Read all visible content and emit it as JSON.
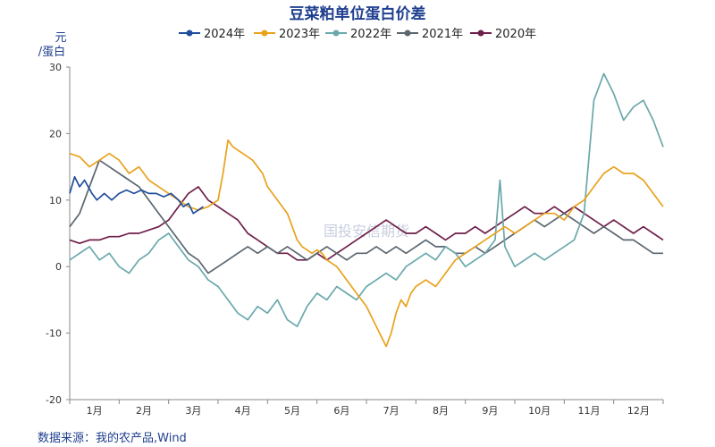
{
  "chart_data": {
    "type": "line",
    "title": "豆菜粕单位蛋白价差",
    "ylabel": "元/蛋白",
    "ylabel_line1": "元",
    "ylabel_line2": "/蛋白",
    "ylim": [
      -20,
      30
    ],
    "yticks": [
      30,
      20,
      10,
      0,
      -10,
      -20
    ],
    "xlim": [
      0,
      12
    ],
    "month_labels": [
      "1月",
      "2月",
      "3月",
      "4月",
      "5月",
      "6月",
      "7月",
      "8月",
      "9月",
      "10月",
      "11月",
      "12月"
    ],
    "legend_position": "top",
    "grid": false,
    "series": [
      {
        "name": "2024年",
        "color": "#1f4e9c",
        "x": [
          0,
          0.1,
          0.2,
          0.3,
          0.45,
          0.55,
          0.7,
          0.85,
          1.0,
          1.15,
          1.3,
          1.45,
          1.6,
          1.75,
          1.9,
          2.05,
          2.2,
          2.3,
          2.4,
          2.5,
          2.6,
          2.7
        ],
        "values": [
          11,
          13.5,
          12,
          13,
          11,
          10,
          11,
          10,
          11,
          11.5,
          11,
          11.5,
          11,
          11,
          10.5,
          11,
          10,
          9,
          9.5,
          8,
          8.5,
          9
        ]
      },
      {
        "name": "2023年",
        "color": "#e8a21c",
        "x": [
          0,
          0.2,
          0.4,
          0.6,
          0.8,
          1.0,
          1.2,
          1.4,
          1.6,
          1.8,
          2.0,
          2.2,
          2.4,
          2.6,
          2.8,
          3.0,
          3.1,
          3.2,
          3.3,
          3.5,
          3.7,
          3.9,
          4.0,
          4.2,
          4.4,
          4.5,
          4.6,
          4.7,
          4.8,
          4.9,
          5.0,
          5.1,
          5.2,
          5.4,
          5.6,
          5.8,
          6.0,
          6.2,
          6.4,
          6.5,
          6.6,
          6.7,
          6.8,
          6.9,
          7.0,
          7.2,
          7.4,
          7.6,
          7.8,
          8.0,
          8.2,
          8.4,
          8.6,
          8.8,
          9.0,
          9.2,
          9.4,
          9.6,
          9.8,
          10.0,
          10.2,
          10.4,
          10.6,
          10.8,
          11.0,
          11.2,
          11.4,
          11.6,
          11.8,
          12.0
        ],
        "values": [
          17,
          16.5,
          15,
          16,
          17,
          16,
          14,
          15,
          13,
          12,
          11,
          10,
          9,
          8.5,
          9,
          10,
          14,
          19,
          18,
          17,
          16,
          14,
          12,
          10,
          8,
          6,
          4,
          3,
          2.5,
          2,
          2.5,
          2,
          1,
          0,
          -2,
          -4,
          -6,
          -9,
          -12,
          -10,
          -7,
          -5,
          -6,
          -4,
          -3,
          -2,
          -3,
          -1,
          1,
          2,
          3,
          4,
          5,
          6,
          5,
          6,
          7,
          8,
          8,
          7,
          9,
          10,
          12,
          14,
          15,
          14,
          14,
          13,
          11,
          9
        ]
      },
      {
        "name": "2022年",
        "color": "#6aa8ab",
        "x": [
          0,
          0.2,
          0.4,
          0.6,
          0.8,
          1.0,
          1.2,
          1.4,
          1.6,
          1.8,
          2.0,
          2.2,
          2.4,
          2.6,
          2.8,
          3.0,
          3.2,
          3.4,
          3.6,
          3.8,
          4.0,
          4.2,
          4.4,
          4.6,
          4.8,
          5.0,
          5.2,
          5.4,
          5.6,
          5.8,
          6.0,
          6.2,
          6.4,
          6.6,
          6.8,
          7.0,
          7.2,
          7.4,
          7.6,
          7.8,
          8.0,
          8.2,
          8.4,
          8.6,
          8.7,
          8.8,
          9.0,
          9.2,
          9.4,
          9.6,
          9.8,
          10.0,
          10.2,
          10.4,
          10.6,
          10.8,
          11.0,
          11.2,
          11.4,
          11.6,
          11.8,
          12.0
        ],
        "values": [
          1,
          2,
          3,
          1,
          2,
          0,
          -1,
          1,
          2,
          4,
          5,
          3,
          1,
          0,
          -2,
          -3,
          -5,
          -7,
          -8,
          -6,
          -7,
          -5,
          -8,
          -9,
          -6,
          -4,
          -5,
          -3,
          -4,
          -5,
          -3,
          -2,
          -1,
          -2,
          0,
          1,
          2,
          1,
          3,
          2,
          0,
          1,
          2,
          4,
          13,
          3,
          0,
          1,
          2,
          1,
          2,
          3,
          4,
          8,
          25,
          29,
          26,
          22,
          24,
          25,
          22,
          18
        ]
      },
      {
        "name": "2021年",
        "color": "#5a6670",
        "x": [
          0,
          0.2,
          0.4,
          0.6,
          0.8,
          1.0,
          1.2,
          1.4,
          1.6,
          1.8,
          2.0,
          2.2,
          2.4,
          2.6,
          2.8,
          3.0,
          3.2,
          3.4,
          3.6,
          3.8,
          4.0,
          4.2,
          4.4,
          4.6,
          4.8,
          5.0,
          5.2,
          5.4,
          5.6,
          5.8,
          6.0,
          6.2,
          6.4,
          6.6,
          6.8,
          7.0,
          7.2,
          7.4,
          7.6,
          7.8,
          8.0,
          8.2,
          8.4,
          8.6,
          8.8,
          9.0,
          9.2,
          9.4,
          9.6,
          9.8,
          10.0,
          10.2,
          10.4,
          10.6,
          10.8,
          11.0,
          11.2,
          11.4,
          11.6,
          11.8,
          12.0
        ],
        "values": [
          6,
          8,
          12,
          16,
          15,
          14,
          13,
          12,
          10,
          8,
          6,
          4,
          2,
          1,
          -1,
          0,
          1,
          2,
          3,
          2,
          3,
          2,
          3,
          2,
          1,
          2,
          3,
          2,
          1,
          2,
          2,
          3,
          2,
          3,
          2,
          3,
          4,
          3,
          3,
          2,
          2,
          3,
          2,
          3,
          4,
          5,
          6,
          7,
          6,
          7,
          8,
          7,
          6,
          5,
          6,
          5,
          4,
          4,
          3,
          2,
          2
        ]
      },
      {
        "name": "2020年",
        "color": "#6e1f4a",
        "x": [
          0,
          0.2,
          0.4,
          0.6,
          0.8,
          1.0,
          1.2,
          1.4,
          1.6,
          1.8,
          2.0,
          2.2,
          2.4,
          2.6,
          2.8,
          3.0,
          3.2,
          3.4,
          3.6,
          3.8,
          4.0,
          4.2,
          4.4,
          4.6,
          4.8,
          5.0,
          5.2,
          5.4,
          5.6,
          5.8,
          6.0,
          6.2,
          6.4,
          6.6,
          6.8,
          7.0,
          7.2,
          7.4,
          7.6,
          7.8,
          8.0,
          8.2,
          8.4,
          8.6,
          8.8,
          9.0,
          9.2,
          9.4,
          9.6,
          9.8,
          10.0,
          10.2,
          10.4,
          10.6,
          10.8,
          11.0,
          11.2,
          11.4,
          11.6,
          11.8,
          12.0
        ],
        "values": [
          4,
          3.5,
          4,
          4,
          4.5,
          4.5,
          5,
          5,
          5.5,
          6,
          7,
          9,
          11,
          12,
          10,
          9,
          8,
          7,
          5,
          4,
          3,
          2,
          2,
          1,
          1,
          2,
          1,
          2,
          3,
          4,
          5,
          6,
          7,
          6,
          5,
          5,
          6,
          5,
          4,
          5,
          5,
          6,
          5,
          6,
          7,
          8,
          9,
          8,
          8,
          9,
          8,
          9,
          8,
          7,
          6,
          7,
          6,
          5,
          6,
          5,
          4
        ]
      }
    ],
    "source": "数据来源：我的农产品,Wind",
    "watermark": "国投安信期货"
  }
}
